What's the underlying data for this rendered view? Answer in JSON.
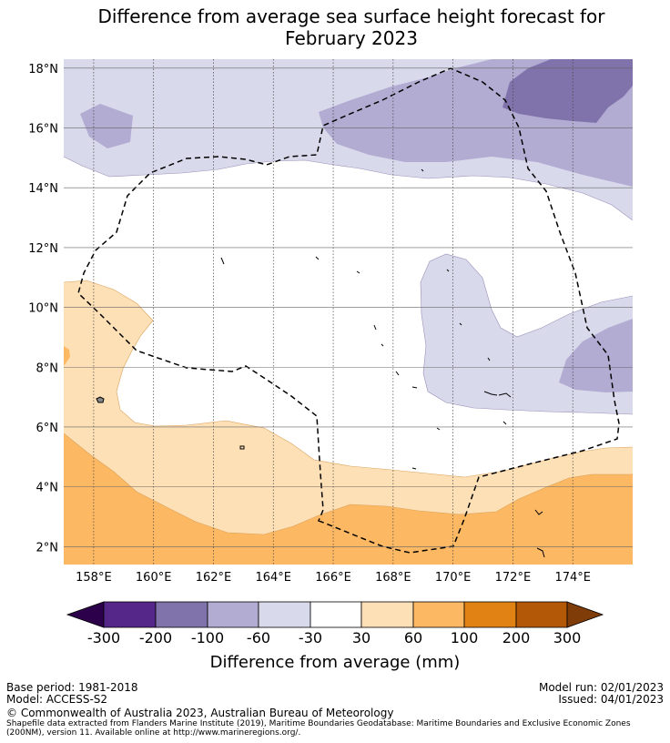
{
  "title": {
    "line1": "Difference from average sea surface height forecast for",
    "line2": "February 2023"
  },
  "colors": {
    "lt_neg300": "#2d004b",
    "neg300_neg200": "#542788",
    "neg200_neg100": "#8073ac",
    "neg100_neg60": "#b2abd2",
    "neg60_neg30": "#d8daeb",
    "neg30_30": "#ffffff",
    "p30_60": "#fee0b6",
    "p60_100": "#fdb863",
    "p100_200": "#e08214",
    "p200_300": "#b35806",
    "gt_300": "#7f3b08"
  },
  "map": {
    "lat_labels": [
      "18°N",
      "16°N",
      "14°N",
      "12°N",
      "10°N",
      "8°N",
      "6°N",
      "4°N",
      "2°N"
    ],
    "lon_labels": [
      "158°E",
      "160°E",
      "162°E",
      "164°E",
      "166°E",
      "168°E",
      "170°E",
      "172°E",
      "174°E"
    ],
    "lat_values": [
      18,
      16,
      14,
      12,
      10,
      8,
      6,
      4,
      2
    ],
    "lon_values": [
      158,
      160,
      162,
      164,
      166,
      168,
      170,
      172,
      174
    ],
    "lat_range": [
      1.4,
      18.3
    ],
    "lon_range": [
      157,
      176
    ],
    "eez_outline": "dashed"
  },
  "colorbar": {
    "labels": [
      "-300",
      "-200",
      "-100",
      "-60",
      "-30",
      "30",
      "60",
      "100",
      "200",
      "300"
    ],
    "title": "Difference from average (mm)",
    "extend": "both"
  },
  "footer": {
    "base_period": "Base period: 1981-2018",
    "model": "Model: ACCESS-S2",
    "model_run": "Model run: 02/01/2023",
    "issued": "Issued: 04/01/2023",
    "copyright": "© Commonwealth of Australia 2023, Australian Bureau of Meteorology",
    "shapefile_line1": "Shapefile data extracted from Flanders Marine Institute (2019), Maritime Boundaries Geodatabase: Maritime Boundaries and Exclusive Economic Zones",
    "shapefile_line2": "(200NM), version 11. Available online at http://www.marineregions.org/."
  }
}
